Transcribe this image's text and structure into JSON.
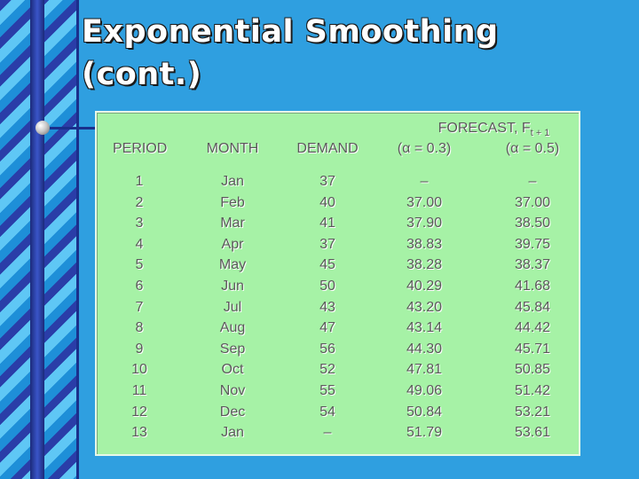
{
  "title": {
    "line1": "Exponential Smoothing",
    "line2": "(cont.)"
  },
  "table": {
    "headers": {
      "period": "PERIOD",
      "month": "MONTH",
      "demand": "DEMAND",
      "forecast": "FORECAST, F",
      "forecast_sub": "t + 1",
      "alpha1": "(α = 0.3)",
      "alpha2": "(α = 0.5)"
    },
    "rows": [
      {
        "period": "1",
        "month": "Jan",
        "demand": "37",
        "f03": "–",
        "f05": "–"
      },
      {
        "period": "2",
        "month": "Feb",
        "demand": "40",
        "f03": "37.00",
        "f05": "37.00"
      },
      {
        "period": "3",
        "month": "Mar",
        "demand": "41",
        "f03": "37.90",
        "f05": "38.50"
      },
      {
        "period": "4",
        "month": "Apr",
        "demand": "37",
        "f03": "38.83",
        "f05": "39.75"
      },
      {
        "period": "5",
        "month": "May",
        "demand": "45",
        "f03": "38.28",
        "f05": "38.37"
      },
      {
        "period": "6",
        "month": "Jun",
        "demand": "50",
        "f03": "40.29",
        "f05": "41.68"
      },
      {
        "period": "7",
        "month": "Jul",
        "demand": "43",
        "f03": "43.20",
        "f05": "45.84"
      },
      {
        "period": "8",
        "month": "Aug",
        "demand": "47",
        "f03": "43.14",
        "f05": "44.42"
      },
      {
        "period": "9",
        "month": "Sep",
        "demand": "56",
        "f03": "44.30",
        "f05": "45.71"
      },
      {
        "period": "10",
        "month": "Oct",
        "demand": "52",
        "f03": "47.81",
        "f05": "50.85"
      },
      {
        "period": "11",
        "month": "Nov",
        "demand": "55",
        "f03": "49.06",
        "f05": "51.42"
      },
      {
        "period": "12",
        "month": "Dec",
        "demand": "54",
        "f03": "50.84",
        "f05": "53.21"
      },
      {
        "period": "13",
        "month": "Jan",
        "demand": "–",
        "f03": "51.79",
        "f05": "53.61"
      }
    ]
  }
}
